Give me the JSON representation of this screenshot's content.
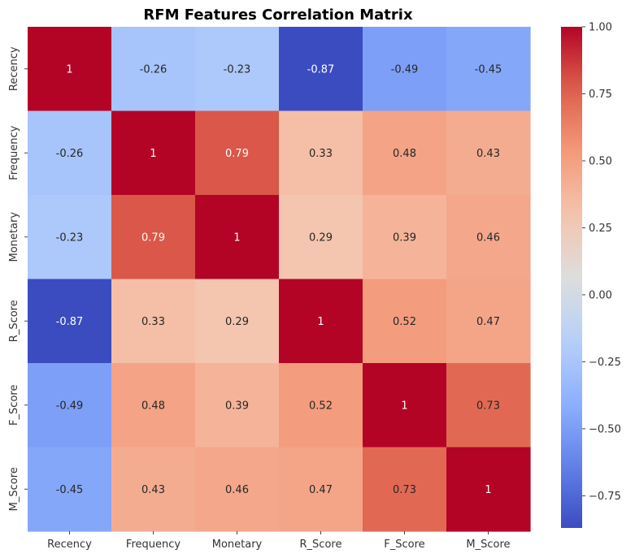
{
  "chart_data": {
    "type": "heatmap",
    "title": "RFM Features Correlation Matrix",
    "row_labels": [
      "Recency",
      "Frequency",
      "Monetary",
      "R_Score",
      "F_Score",
      "M_Score"
    ],
    "col_labels": [
      "Recency",
      "Frequency",
      "Monetary",
      "R_Score",
      "F_Score",
      "M_Score"
    ],
    "values": [
      [
        1,
        -0.26,
        -0.23,
        -0.87,
        -0.49,
        -0.45
      ],
      [
        -0.26,
        1,
        0.79,
        0.33,
        0.48,
        0.43
      ],
      [
        -0.23,
        0.79,
        1,
        0.29,
        0.39,
        0.46
      ],
      [
        -0.87,
        0.33,
        0.29,
        1,
        0.52,
        0.47
      ],
      [
        -0.49,
        0.48,
        0.39,
        0.52,
        1,
        0.73
      ],
      [
        -0.45,
        0.43,
        0.46,
        0.47,
        0.73,
        1
      ]
    ],
    "annotations": [
      [
        "1",
        "-0.26",
        "-0.23",
        "-0.87",
        "-0.49",
        "-0.45"
      ],
      [
        "-0.26",
        "1",
        "0.79",
        "0.33",
        "0.48",
        "0.43"
      ],
      [
        "-0.23",
        "0.79",
        "1",
        "0.29",
        "0.39",
        "0.46"
      ],
      [
        "-0.87",
        "0.33",
        "0.29",
        "1",
        "0.52",
        "0.47"
      ],
      [
        "-0.49",
        "0.48",
        "0.39",
        "0.52",
        "1",
        "0.73"
      ],
      [
        "-0.45",
        "0.43",
        "0.46",
        "0.47",
        "0.73",
        "1"
      ]
    ],
    "colormap": "coolwarm",
    "colorbar": {
      "vmin": -0.87,
      "vmax": 1.0,
      "ticks": [
        1.0,
        0.75,
        0.5,
        0.25,
        0.0,
        -0.25,
        -0.5,
        -0.75
      ],
      "tick_labels": [
        "1.00",
        "0.75",
        "0.50",
        "0.25",
        "0.00",
        "−0.25",
        "−0.50",
        "−0.75"
      ]
    }
  }
}
